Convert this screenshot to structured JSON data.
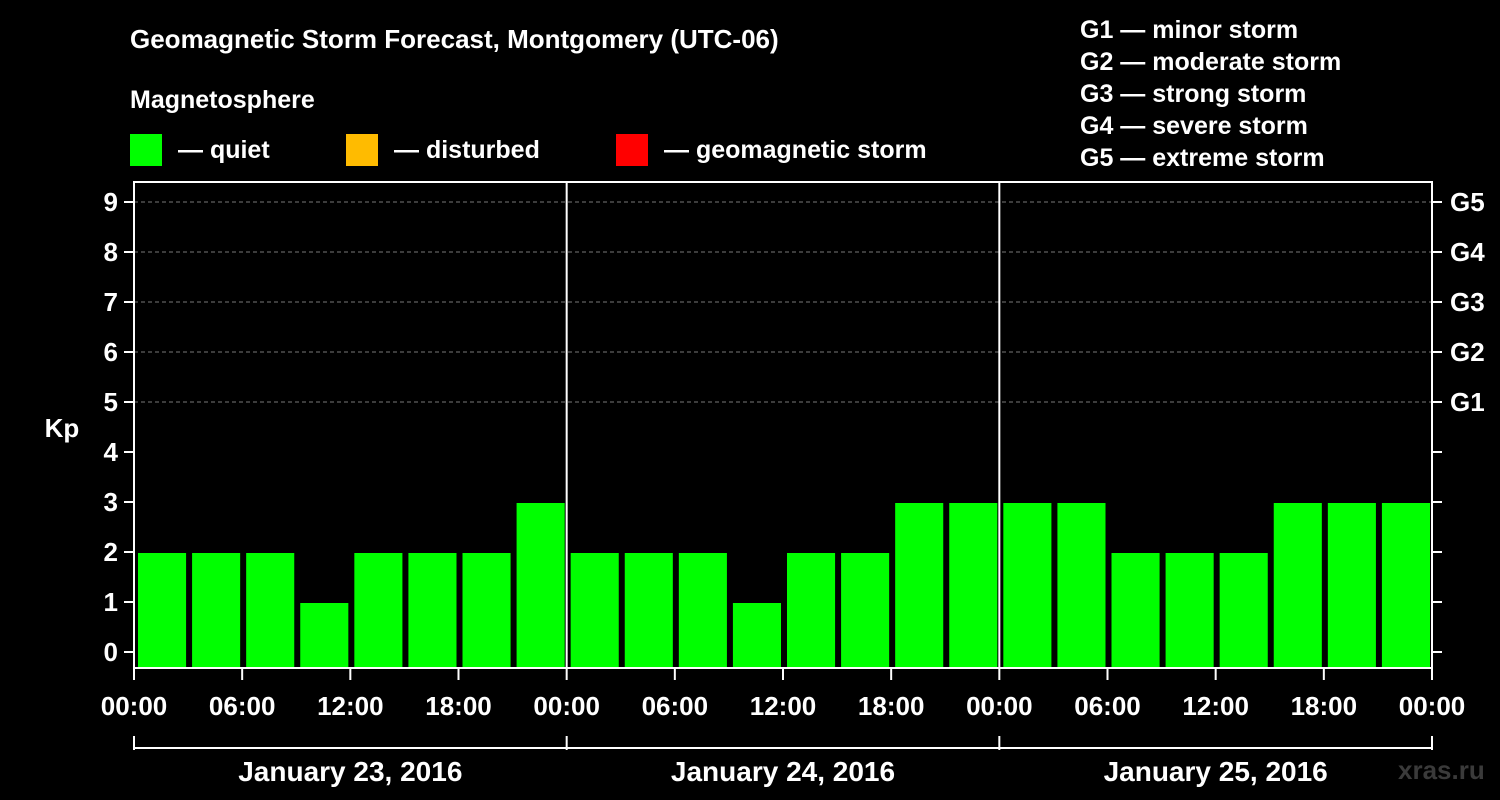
{
  "title": "Geomagnetic Storm Forecast, Montgomery (UTC-06)",
  "subtitle": "Magnetosphere",
  "legend": [
    {
      "label": "— quiet",
      "color": "#00ff00"
    },
    {
      "label": "— disturbed",
      "color": "#ffbb00"
    },
    {
      "label": "— geomagnetic storm",
      "color": "#ff0000"
    }
  ],
  "storm_levels": [
    "G1 — minor storm",
    "G2 — moderate storm",
    "G3 — strong storm",
    "G4 — severe storm",
    "G5 — extreme storm"
  ],
  "watermark": "xras.ru",
  "chart_data": {
    "type": "bar",
    "title": "Geomagnetic Storm Forecast, Montgomery (UTC-06)",
    "ylabel": "Kp",
    "ylim": [
      0,
      9
    ],
    "yticks": [
      "0",
      "1",
      "2",
      "3",
      "4",
      "5",
      "6",
      "7",
      "8",
      "9"
    ],
    "right_axis_labels": [
      {
        "kp": 5,
        "label": "G1"
      },
      {
        "kp": 6,
        "label": "G2"
      },
      {
        "kp": 7,
        "label": "G3"
      },
      {
        "kp": 8,
        "label": "G4"
      },
      {
        "kp": 9,
        "label": "G5"
      }
    ],
    "xtick_labels": [
      "00:00",
      "06:00",
      "12:00",
      "18:00",
      "00:00",
      "06:00",
      "12:00",
      "18:00",
      "00:00",
      "06:00",
      "12:00",
      "18:00",
      "00:00"
    ],
    "days": [
      "January 23, 2016",
      "January 24, 2016",
      "January 25, 2016"
    ],
    "interval_hours": 3,
    "values": [
      2,
      2,
      2,
      1,
      2,
      2,
      2,
      3,
      2,
      2,
      2,
      1,
      2,
      2,
      3,
      3,
      3,
      3,
      2,
      2,
      2,
      3,
      3,
      3
    ],
    "bar_color": "#00ff00",
    "grid": "dashed at Kp 5-9"
  }
}
